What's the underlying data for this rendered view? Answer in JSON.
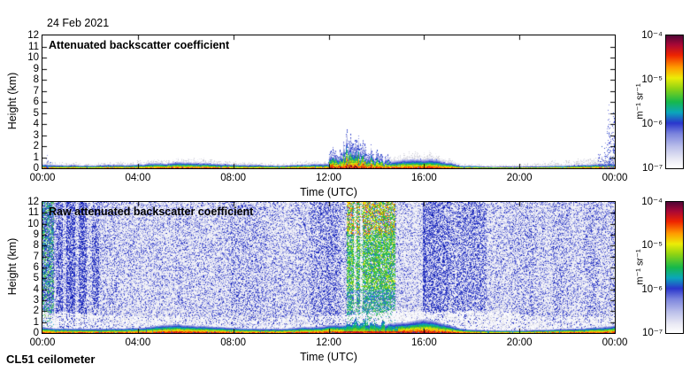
{
  "header": {
    "date": "24 Feb 2021"
  },
  "footer": {
    "instrument": "CL51 ceilometer"
  },
  "colormap": [
    [
      0.0,
      "#ffffff"
    ],
    [
      0.07,
      "#e9e9f4"
    ],
    [
      0.16,
      "#bcc0ea"
    ],
    [
      0.26,
      "#7b84dd"
    ],
    [
      0.34,
      "#2a36cc"
    ],
    [
      0.42,
      "#0ba6bb"
    ],
    [
      0.5,
      "#16b84b"
    ],
    [
      0.6,
      "#8ed313"
    ],
    [
      0.68,
      "#ecec07"
    ],
    [
      0.76,
      "#ff9a00"
    ],
    [
      0.85,
      "#ee2400"
    ],
    [
      0.93,
      "#a80736"
    ],
    [
      1.0,
      "#500636"
    ]
  ],
  "chart_data": [
    {
      "id": "attenuated-backscatter",
      "type": "heatmap",
      "title": "Attenuated backscatter coefficient",
      "xlabel": "Time (UTC)",
      "ylabel": "Height (km)",
      "x_ticks": [
        "00:00",
        "04:00",
        "08:00",
        "12:00",
        "16:00",
        "20:00",
        "00:00"
      ],
      "y_ticks": [
        0,
        1,
        2,
        3,
        4,
        5,
        6,
        7,
        8,
        9,
        10,
        11,
        12
      ],
      "xlim_hours": [
        0,
        24
      ],
      "ylim_km": [
        0,
        12
      ],
      "grid": false,
      "background": "#ffffff",
      "colorbar": {
        "ticks": [
          "10⁻⁴",
          "10⁻⁵",
          "10⁻⁶",
          "10⁻⁷"
        ],
        "unit": "m⁻¹ sr⁻¹",
        "scale": "log",
        "min": "1e-7",
        "max": "1e-4"
      },
      "seed": 7,
      "features": {
        "surface_layer_top_km": [
          [
            0,
            0.38
          ],
          [
            0.5,
            0.32
          ],
          [
            1,
            0.3
          ],
          [
            2,
            0.28
          ],
          [
            3,
            0.3
          ],
          [
            4,
            0.33
          ],
          [
            4.8,
            0.45
          ],
          [
            5.5,
            0.55
          ],
          [
            6.2,
            0.5
          ],
          [
            7,
            0.43
          ],
          [
            7.5,
            0.38
          ],
          [
            8,
            0.33
          ],
          [
            9,
            0.3
          ],
          [
            10,
            0.28
          ],
          [
            10.8,
            0.36
          ],
          [
            11.3,
            0.4
          ],
          [
            11.8,
            0.42
          ],
          [
            12,
            0.5
          ],
          [
            13,
            0.52
          ],
          [
            14,
            0.5
          ],
          [
            14.5,
            0.55
          ],
          [
            15,
            0.65
          ],
          [
            15.6,
            0.8
          ],
          [
            16.1,
            0.85
          ],
          [
            16.6,
            0.7
          ],
          [
            17.1,
            0.5
          ],
          [
            17.5,
            0.3
          ],
          [
            18,
            0.22
          ],
          [
            19,
            0.18
          ],
          [
            20,
            0.18
          ],
          [
            21,
            0.22
          ],
          [
            22,
            0.28
          ],
          [
            23,
            0.35
          ],
          [
            24,
            0.45
          ]
        ],
        "cloud_plumes": [
          [
            12.05,
            1.2
          ],
          [
            12.15,
            1.7
          ],
          [
            12.3,
            1.9
          ],
          [
            12.45,
            1.6
          ],
          [
            12.6,
            2.4
          ],
          [
            12.75,
            2.9
          ],
          [
            12.9,
            2.7
          ],
          [
            13.0,
            3.0
          ],
          [
            13.1,
            2.5
          ],
          [
            13.25,
            2.9
          ],
          [
            13.45,
            2.2
          ],
          [
            13.6,
            1.5
          ],
          [
            13.8,
            1.9
          ],
          [
            14.0,
            1.4
          ],
          [
            14.2,
            1.6
          ],
          [
            14.45,
            1.1
          ]
        ],
        "edge_noise_spikes": [
          [
            23.35,
            1.8
          ],
          [
            23.45,
            2.3
          ],
          [
            23.55,
            2.6
          ],
          [
            23.62,
            2.2
          ],
          [
            23.7,
            5.8
          ],
          [
            23.76,
            4.8
          ],
          [
            23.82,
            3.6
          ],
          [
            23.88,
            2.8
          ],
          [
            23.93,
            4.2
          ],
          [
            23.98,
            5.2
          ]
        ],
        "left_noise_spikes": [
          [
            0.08,
            1.0
          ],
          [
            0.18,
            1.3
          ],
          [
            0.3,
            0.8
          ]
        ]
      }
    },
    {
      "id": "raw-attenuated-backscatter",
      "type": "heatmap",
      "title": "Raw attenuated backscatter coefficient",
      "xlabel": "Time (UTC)",
      "ylabel": "Height (km)",
      "x_ticks": [
        "00:00",
        "04:00",
        "08:00",
        "12:00",
        "16:00",
        "20:00",
        "00:00"
      ],
      "y_ticks": [
        0,
        1,
        2,
        3,
        4,
        5,
        6,
        7,
        8,
        9,
        10,
        11,
        12
      ],
      "xlim_hours": [
        0,
        24
      ],
      "ylim_km": [
        0,
        12
      ],
      "grid": false,
      "background": "#f2f2f7",
      "colorbar": {
        "ticks": [
          "10⁻⁴",
          "10⁻⁵",
          "10⁻⁶",
          "10⁻⁷"
        ],
        "unit": "m⁻¹ sr⁻¹",
        "scale": "log",
        "min": "1e-7",
        "max": "1e-4"
      },
      "seed": 99,
      "features": {
        "stripes": [
          [
            0,
            0.45,
            "green",
            3.5
          ],
          [
            0.45,
            0.55,
            "blue",
            1.0
          ],
          [
            0.55,
            0.85,
            "blue",
            2.8
          ],
          [
            1.0,
            1.35,
            "blue",
            3.0
          ],
          [
            1.5,
            1.85,
            "blue",
            2.8
          ],
          [
            2.05,
            2.35,
            "blue",
            2.5
          ],
          [
            2.35,
            3.2,
            "blue",
            1.2
          ],
          [
            3.2,
            5.6,
            "blue",
            0.85
          ],
          [
            5.6,
            6.4,
            "blue",
            1.1
          ],
          [
            6.4,
            7.9,
            "blue",
            0.95
          ],
          [
            7.9,
            9.4,
            "blue",
            1.5
          ],
          [
            9.4,
            11.2,
            "blue",
            1.05
          ],
          [
            11.2,
            12.5,
            "blue",
            2.0
          ],
          [
            12.5,
            12.76,
            "blue",
            1.2
          ],
          [
            12.76,
            14.8,
            "hot",
            4.0
          ],
          [
            14.8,
            15.95,
            "blue",
            0.7
          ],
          [
            15.95,
            16.05,
            "blue",
            3.2
          ],
          [
            16.05,
            17.0,
            "blue",
            2.6
          ],
          [
            17.0,
            18.6,
            "blue",
            2.0
          ],
          [
            18.6,
            19.6,
            "blue",
            1.0
          ],
          [
            19.6,
            20.6,
            "blue",
            1.35
          ],
          [
            20.6,
            21.4,
            "blue",
            0.95
          ],
          [
            21.4,
            22.0,
            "blue",
            1.4
          ],
          [
            22.0,
            22.7,
            "blue",
            1.05
          ],
          [
            22.7,
            23.3,
            "blue",
            1.5
          ],
          [
            23.3,
            24,
            "blue",
            1.2
          ]
        ],
        "pale_slots_h": [
          13.1,
          13.35
        ],
        "white_band_amp": [
          [
            0,
            0.9
          ],
          [
            3,
            0.65
          ],
          [
            9,
            0.45
          ],
          [
            11.5,
            0.55
          ],
          [
            14.8,
            0.95
          ],
          [
            16.4,
            0.9
          ],
          [
            19.6,
            0.85
          ],
          [
            20.8,
            0.6
          ],
          [
            24,
            0.6
          ]
        ],
        "white_fingers_h": [
          14.95,
          15.1,
          15.3,
          15.55
        ],
        "surface_scale": 1.25,
        "surface_layer_top_km": [
          [
            0,
            0.38
          ],
          [
            0.5,
            0.32
          ],
          [
            1,
            0.3
          ],
          [
            2,
            0.28
          ],
          [
            3,
            0.3
          ],
          [
            4,
            0.33
          ],
          [
            4.8,
            0.45
          ],
          [
            5.5,
            0.55
          ],
          [
            6.2,
            0.5
          ],
          [
            7,
            0.43
          ],
          [
            7.5,
            0.38
          ],
          [
            8,
            0.33
          ],
          [
            9,
            0.3
          ],
          [
            10,
            0.28
          ],
          [
            10.8,
            0.36
          ],
          [
            11.3,
            0.4
          ],
          [
            11.8,
            0.42
          ],
          [
            12,
            0.5
          ],
          [
            13,
            0.52
          ],
          [
            14,
            0.5
          ],
          [
            14.5,
            0.55
          ],
          [
            15,
            0.65
          ],
          [
            15.6,
            0.8
          ],
          [
            16.1,
            0.85
          ],
          [
            16.6,
            0.7
          ],
          [
            17.1,
            0.5
          ],
          [
            17.5,
            0.3
          ],
          [
            18,
            0.22
          ],
          [
            19,
            0.18
          ],
          [
            20,
            0.18
          ],
          [
            21,
            0.22
          ],
          [
            22,
            0.28
          ],
          [
            23,
            0.35
          ],
          [
            24,
            0.45
          ]
        ],
        "surface_plumes": [
          [
            12.75,
            0.9
          ],
          [
            12.85,
            1.3
          ],
          [
            12.95,
            1.1
          ],
          [
            13.1,
            1.6
          ],
          [
            13.3,
            1.2
          ],
          [
            13.5,
            1.7
          ],
          [
            13.65,
            1.0
          ],
          [
            13.85,
            1.4
          ],
          [
            14.05,
            0.9
          ],
          [
            14.25,
            1.5
          ],
          [
            14.45,
            1.0
          ],
          [
            14.6,
            1.2
          ],
          [
            14.75,
            0.8
          ]
        ]
      }
    }
  ]
}
